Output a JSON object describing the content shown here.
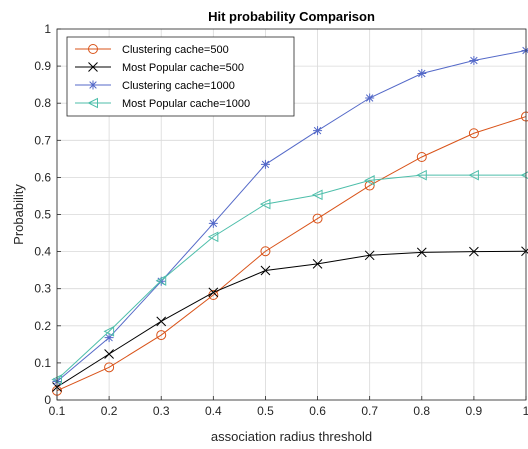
{
  "chart_data": {
    "type": "line",
    "title": "Hit probability Comparison",
    "xlabel": "association radius threshold",
    "ylabel": "Probability",
    "xlim": [
      0.1,
      1
    ],
    "ylim": [
      0,
      1
    ],
    "x": [
      0.1,
      0.2,
      0.3,
      0.4,
      0.5,
      0.6,
      0.7,
      0.8,
      0.9,
      1
    ],
    "xticks": [
      "0.1",
      "0.2",
      "0.3",
      "0.4",
      "0.5",
      "0.6",
      "0.7",
      "0.8",
      "0.9",
      "1"
    ],
    "yticks": [
      "0",
      "0.1",
      "0.2",
      "0.3",
      "0.4",
      "0.5",
      "0.6",
      "0.7",
      "0.8",
      "0.9",
      "1"
    ],
    "grid": true,
    "legend_position": "top-left",
    "series": [
      {
        "name": "Clustering cache=500",
        "color": "#d95319",
        "marker": "circle",
        "values": [
          0.025,
          0.088,
          0.175,
          0.283,
          0.401,
          0.489,
          0.578,
          0.655,
          0.719,
          0.764
        ]
      },
      {
        "name": "Most Popular cache=500",
        "color": "#000000",
        "marker": "x",
        "values": [
          0.035,
          0.124,
          0.212,
          0.29,
          0.349,
          0.367,
          0.39,
          0.398,
          0.4,
          0.401
        ]
      },
      {
        "name": "Clustering cache=1000",
        "color": "#5469c8",
        "marker": "star",
        "values": [
          0.05,
          0.168,
          0.32,
          0.476,
          0.635,
          0.726,
          0.814,
          0.88,
          0.915,
          0.942
        ]
      },
      {
        "name": "Most Popular cache=1000",
        "color": "#4dbeaa",
        "marker": "triangle-left",
        "values": [
          0.055,
          0.185,
          0.322,
          0.44,
          0.528,
          0.553,
          0.592,
          0.606,
          0.606,
          0.606
        ]
      }
    ]
  }
}
